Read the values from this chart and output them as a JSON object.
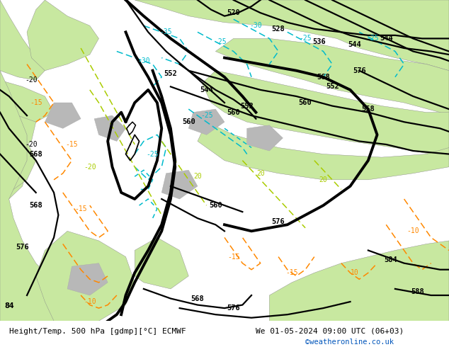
{
  "title_left": "Height/Temp. 500 hPa [gdmp][°C] ECMWF",
  "title_right": "We 01-05-2024 09:00 UTC (06+03)",
  "credit": "©weatheronline.co.uk",
  "background_color": "#ffffff",
  "sea_color": "#d8d8d8",
  "land_green_light": "#c8e8a0",
  "land_green_dark": "#b0d878",
  "land_gray": "#b8b8b8",
  "geo_color": "#000000",
  "temp_neg_color": "#00bbcc",
  "temp_pos_color": "#ff8800",
  "temp_zero_color": "#aacc00",
  "credit_color": "#0055bb",
  "figsize": [
    6.34,
    4.9
  ],
  "dpi": 100,
  "font": "DejaVu Sans",
  "geo_lw": 1.6,
  "geo_lw_thick": 2.8,
  "temp_lw": 1.1
}
